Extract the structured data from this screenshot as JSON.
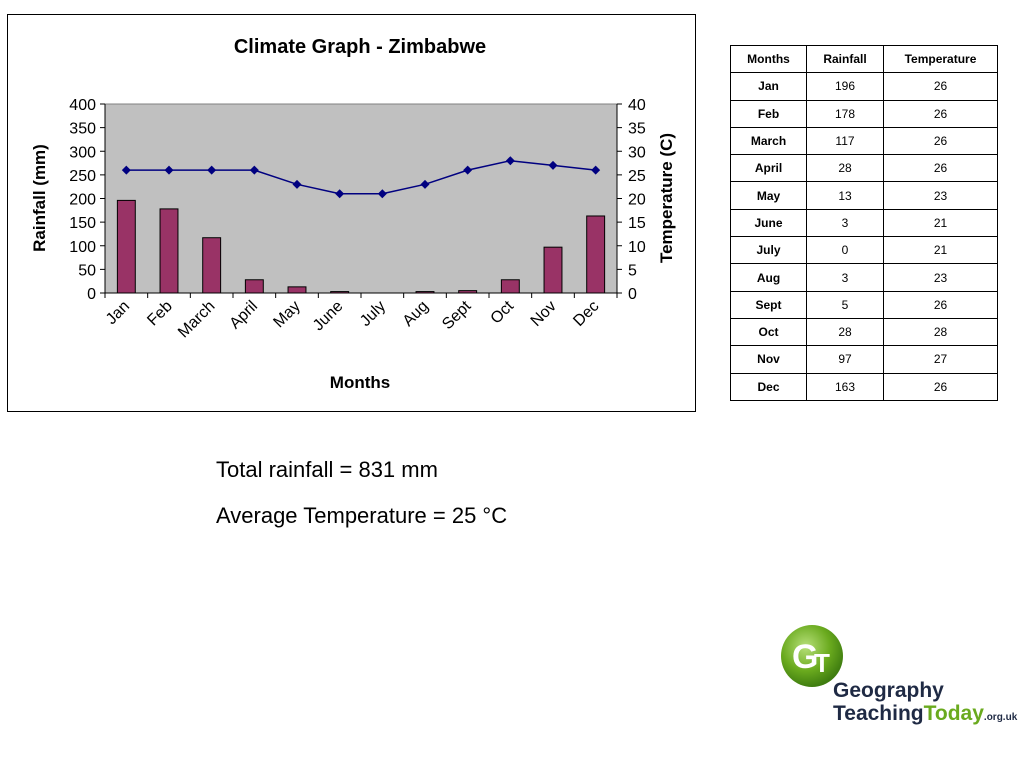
{
  "chart_data": {
    "type": "bar+line",
    "title": "Climate Graph - Zimbabwe",
    "xlabel": "Months",
    "ylabel_left": "Rainfall (mm)",
    "ylabel_right": "Temperature (C)",
    "categories": [
      "Jan",
      "Feb",
      "March",
      "April",
      "May",
      "June",
      "July",
      "Aug",
      "Sept",
      "Oct",
      "Nov",
      "Dec"
    ],
    "series": [
      {
        "values": [
          196,
          178,
          117,
          28,
          13,
          3,
          0,
          3,
          5,
          28,
          97,
          163
        ],
        "axis": "left",
        "kind": "bar",
        "color": "#993366"
      },
      {
        "values": [
          26,
          26,
          26,
          26,
          23,
          21,
          21,
          23,
          26,
          28,
          27,
          26
        ],
        "axis": "right",
        "kind": "line",
        "color": "#000080"
      }
    ],
    "ylim_left": [
      0,
      400
    ],
    "ylim_right": [
      0,
      40
    ],
    "yticks_left": [
      0,
      50,
      100,
      150,
      200,
      250,
      300,
      350,
      400
    ],
    "yticks_right": [
      0,
      5,
      10,
      15,
      20,
      25,
      30,
      35,
      40
    ],
    "plot_background": "#c0c0c0",
    "grid": false,
    "legend": "none"
  },
  "table": {
    "headers": [
      "Months",
      "Rainfall",
      "Temperature"
    ],
    "rows": [
      [
        "Jan",
        "196",
        "26"
      ],
      [
        "Feb",
        "178",
        "26"
      ],
      [
        "March",
        "117",
        "26"
      ],
      [
        "April",
        "28",
        "26"
      ],
      [
        "May",
        "13",
        "23"
      ],
      [
        "June",
        "3",
        "21"
      ],
      [
        "July",
        "0",
        "21"
      ],
      [
        "Aug",
        "3",
        "23"
      ],
      [
        "Sept",
        "5",
        "26"
      ],
      [
        "Oct",
        "28",
        "28"
      ],
      [
        "Nov",
        "97",
        "27"
      ],
      [
        "Dec",
        "163",
        "26"
      ]
    ]
  },
  "summary": {
    "total_rainfall": "Total rainfall = 831 mm",
    "average_temperature": "Average Temperature = 25 °C"
  },
  "logo": {
    "line1": "Geography",
    "line2a": "Teaching",
    "line2b": "Today",
    "line2c": ".org.uk",
    "colors": {
      "green": "#6aaa1e",
      "dark": "#1f2a44"
    }
  }
}
